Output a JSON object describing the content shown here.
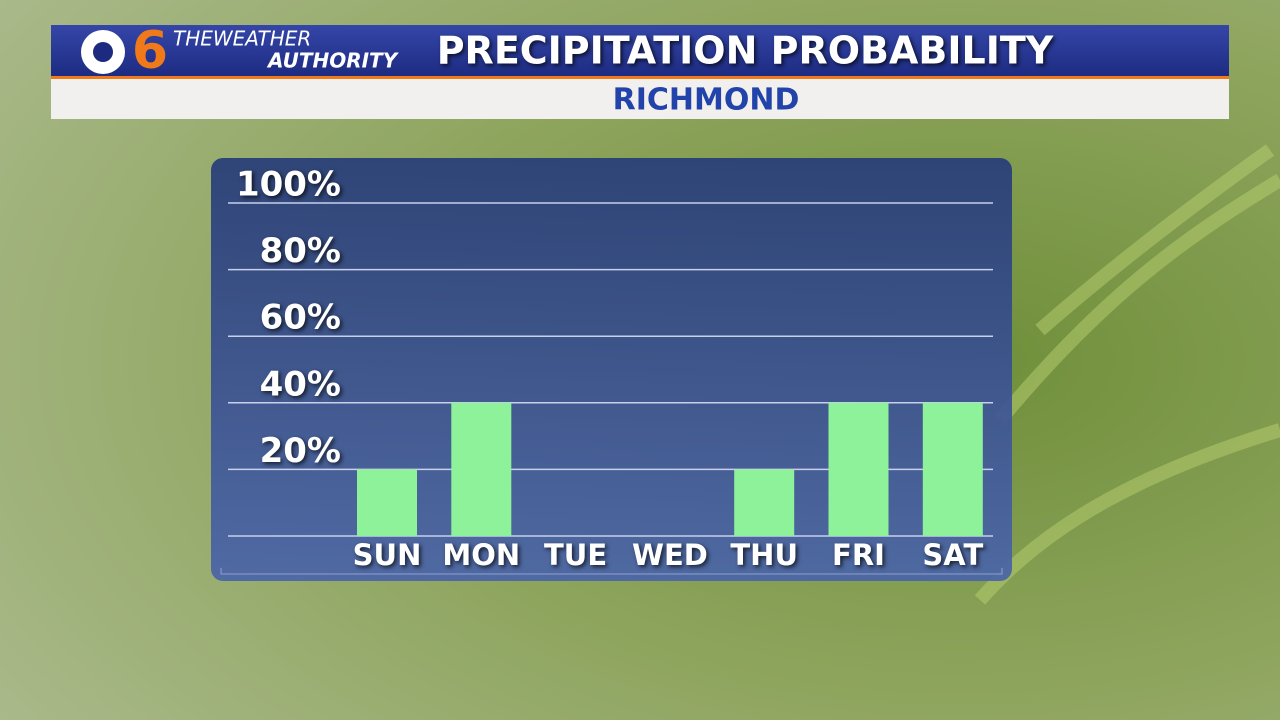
{
  "branding": {
    "channel": "6",
    "line1": "THEWEATHER",
    "line2": "AUTHORITY"
  },
  "chart_data": {
    "type": "bar",
    "title": "PRECIPITATION PROBABILITY",
    "subtitle": "RICHMOND",
    "categories": [
      "SUN",
      "MON",
      "TUE",
      "WED",
      "THU",
      "FRI",
      "SAT"
    ],
    "values": [
      20,
      40,
      0,
      0,
      20,
      40,
      40
    ],
    "color": "#8ef29a",
    "ylim": [
      0,
      100
    ],
    "yticks": [
      {
        "value": 20,
        "label": "20%"
      },
      {
        "value": 40,
        "label": "40%"
      },
      {
        "value": 60,
        "label": "60%"
      },
      {
        "value": 80,
        "label": "80%"
      },
      {
        "value": 100,
        "label": "100%"
      }
    ],
    "grid": true
  }
}
